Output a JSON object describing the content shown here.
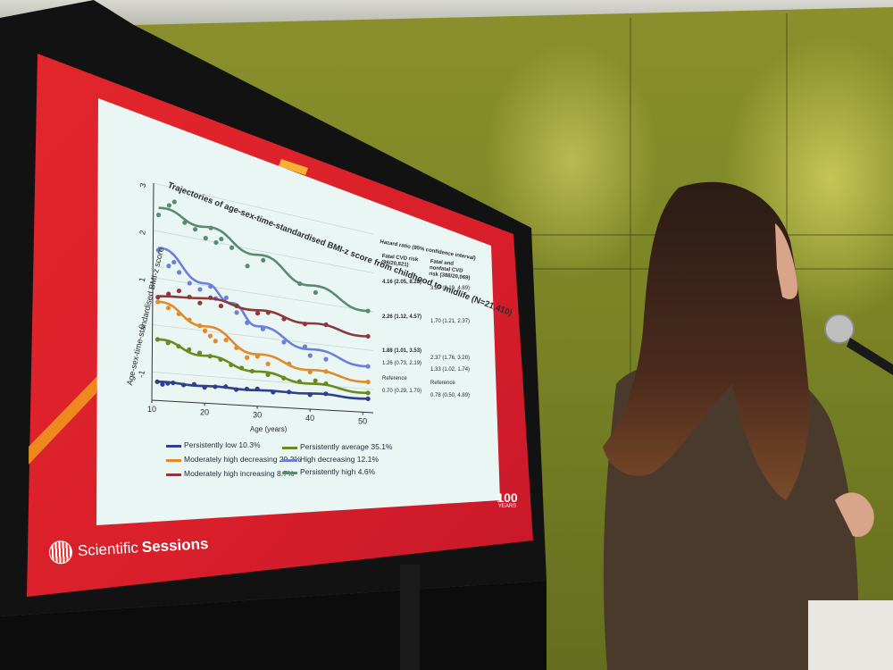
{
  "slide": {
    "title": "Trajectories of age-sex-time-standardised BMI-z score from childhood to midlife (N=21,410)",
    "ylabel": "Age-sex-time-standardised BMI-z score",
    "xlabel": "Age (years)",
    "brand_prefix": "Scientific",
    "brand_bold": "Sessions",
    "badge_years": "100",
    "badge_label": "YEARS"
  },
  "chart_data": {
    "type": "scatter",
    "xlabel": "Age (years)",
    "ylabel": "Age-sex-time-standardised BMI-z score",
    "xlim": [
      10,
      52
    ],
    "ylim": [
      -1.6,
      3
    ],
    "xticks": [
      10,
      20,
      30,
      40,
      50
    ],
    "yticks": [
      -1,
      0,
      1,
      2,
      3
    ],
    "series": [
      {
        "name": "Persistently high 4.6%",
        "color": "#5b8a72",
        "line": [
          [
            11,
            2.5
          ],
          [
            20,
            2.3
          ],
          [
            30,
            1.9
          ],
          [
            40,
            1.4
          ],
          [
            51,
            1.0
          ]
        ],
        "points": [
          [
            11,
            2.35
          ],
          [
            13,
            2.6
          ],
          [
            14,
            2.7
          ],
          [
            16,
            2.3
          ],
          [
            18,
            2.2
          ],
          [
            20,
            2.05
          ],
          [
            21,
            2.3
          ],
          [
            22,
            2.0
          ],
          [
            23,
            2.1
          ],
          [
            25,
            1.95
          ],
          [
            28,
            1.6
          ],
          [
            31,
            1.8
          ],
          [
            38,
            1.4
          ],
          [
            41,
            1.25
          ],
          [
            51,
            1.0
          ]
        ]
      },
      {
        "name": "High decreasing 12.1%",
        "color": "#6d7fd8",
        "line": [
          [
            11,
            1.65
          ],
          [
            20,
            1.05
          ],
          [
            25,
            0.7
          ],
          [
            30,
            0.25
          ],
          [
            40,
            -0.15
          ],
          [
            51,
            -0.42
          ]
        ],
        "points": [
          [
            11,
            1.6
          ],
          [
            13,
            1.3
          ],
          [
            14,
            1.4
          ],
          [
            15,
            1.2
          ],
          [
            17,
            1.0
          ],
          [
            19,
            0.9
          ],
          [
            21,
            1.0
          ],
          [
            22,
            0.75
          ],
          [
            24,
            0.8
          ],
          [
            26,
            0.5
          ],
          [
            28,
            0.3
          ],
          [
            31,
            0.2
          ],
          [
            35,
            -0.05
          ],
          [
            39,
            -0.1
          ],
          [
            40,
            -0.3
          ],
          [
            43,
            -0.35
          ],
          [
            51,
            -0.42
          ]
        ]
      },
      {
        "name": "Moderately high increasing 8.7%",
        "color": "#8a3a3a",
        "line": [
          [
            11,
            0.62
          ],
          [
            20,
            0.72
          ],
          [
            30,
            0.62
          ],
          [
            40,
            0.48
          ],
          [
            51,
            0.35
          ]
        ],
        "points": [
          [
            11,
            0.6
          ],
          [
            13,
            0.7
          ],
          [
            15,
            0.8
          ],
          [
            17,
            0.7
          ],
          [
            19,
            0.6
          ],
          [
            21,
            0.75
          ],
          [
            23,
            0.6
          ],
          [
            26,
            0.65
          ],
          [
            30,
            0.55
          ],
          [
            32,
            0.6
          ],
          [
            35,
            0.5
          ],
          [
            39,
            0.45
          ],
          [
            43,
            0.5
          ],
          [
            51,
            0.35
          ]
        ]
      },
      {
        "name": "Moderately high decreasing 29.2%",
        "color": "#e08a2a",
        "line": [
          [
            11,
            0.5
          ],
          [
            20,
            0.1
          ],
          [
            30,
            -0.4
          ],
          [
            40,
            -0.65
          ],
          [
            51,
            -0.82
          ]
        ],
        "points": [
          [
            11,
            0.5
          ],
          [
            13,
            0.4
          ],
          [
            15,
            0.3
          ],
          [
            17,
            0.2
          ],
          [
            19,
            0.1
          ],
          [
            20,
            0.0
          ],
          [
            21,
            -0.1
          ],
          [
            22,
            -0.2
          ],
          [
            24,
            -0.15
          ],
          [
            26,
            -0.3
          ],
          [
            28,
            -0.5
          ],
          [
            30,
            -0.45
          ],
          [
            32,
            -0.6
          ],
          [
            36,
            -0.55
          ],
          [
            40,
            -0.7
          ],
          [
            43,
            -0.65
          ],
          [
            51,
            -0.82
          ]
        ]
      },
      {
        "name": "Persistently average 35.1%",
        "color": "#6a8a1e",
        "line": [
          [
            11,
            -0.3
          ],
          [
            20,
            -0.55
          ],
          [
            30,
            -0.8
          ],
          [
            40,
            -0.98
          ],
          [
            51,
            -1.1
          ]
        ],
        "points": [
          [
            11,
            -0.3
          ],
          [
            13,
            -0.35
          ],
          [
            15,
            -0.4
          ],
          [
            17,
            -0.45
          ],
          [
            19,
            -0.5
          ],
          [
            21,
            -0.55
          ],
          [
            23,
            -0.6
          ],
          [
            25,
            -0.7
          ],
          [
            27,
            -0.75
          ],
          [
            29,
            -0.8
          ],
          [
            32,
            -0.85
          ],
          [
            35,
            -0.9
          ],
          [
            38,
            -0.95
          ],
          [
            41,
            -0.9
          ],
          [
            43,
            -0.95
          ],
          [
            51,
            -1.1
          ]
        ]
      },
      {
        "name": "Persistently low 10.3%",
        "color": "#2f3f8a",
        "line": [
          [
            11,
            -1.2
          ],
          [
            20,
            -1.22
          ],
          [
            30,
            -1.23
          ],
          [
            40,
            -1.22
          ],
          [
            51,
            -1.25
          ]
        ],
        "points": [
          [
            11,
            -1.2
          ],
          [
            12,
            -1.25
          ],
          [
            13,
            -1.22
          ],
          [
            14,
            -1.2
          ],
          [
            16,
            -1.23
          ],
          [
            18,
            -1.2
          ],
          [
            20,
            -1.25
          ],
          [
            22,
            -1.22
          ],
          [
            24,
            -1.2
          ],
          [
            26,
            -1.25
          ],
          [
            28,
            -1.22
          ],
          [
            30,
            -1.2
          ],
          [
            33,
            -1.25
          ],
          [
            36,
            -1.22
          ],
          [
            40,
            -1.25
          ],
          [
            43,
            -1.2
          ],
          [
            51,
            -1.25
          ]
        ]
      }
    ]
  },
  "hazard": {
    "heading": "Hazard ratio (95% confidence interval)",
    "col1": "Fatal CVD risk (98/20,821)",
    "col2": "Fatal and nonfatal CVD risk (388/20,069)",
    "rows": [
      {
        "c1": "4.16 (2.05, 8.28)",
        "c2": "3.27 (2.19, 4.89)"
      },
      {
        "c1": "2.26 (1.12, 4.57)",
        "c2": "1.70 (1.21, 2.37)"
      },
      {
        "c1": "1.88 (1.01, 3.53)",
        "c2": "2.37 (1.76, 3.20)"
      },
      {
        "c1": "1.26 (0.73, 2.19)",
        "c2": "1.33 (1.02, 1.74)"
      },
      {
        "c1": "Reference",
        "c2": "Reference"
      },
      {
        "c1": "0.70 (0.29, 1.70)",
        "c2": "0.78 (0.50, 4.89)"
      }
    ]
  },
  "legend": [
    {
      "label": "Persistently low 10.3%",
      "color": "#2f3f8a"
    },
    {
      "label": "Persistently average 35.1%",
      "color": "#6a8a1e"
    },
    {
      "label": "Moderately high decreasing 29.2%",
      "color": "#e08a2a"
    },
    {
      "label": "High decreasing 12.1%",
      "color": "#6d7fd8"
    },
    {
      "label": "Moderately high increasing 8.7%",
      "color": "#8a3a3a"
    },
    {
      "label": "Persistently high 4.6%",
      "color": "#5b8a72"
    }
  ]
}
